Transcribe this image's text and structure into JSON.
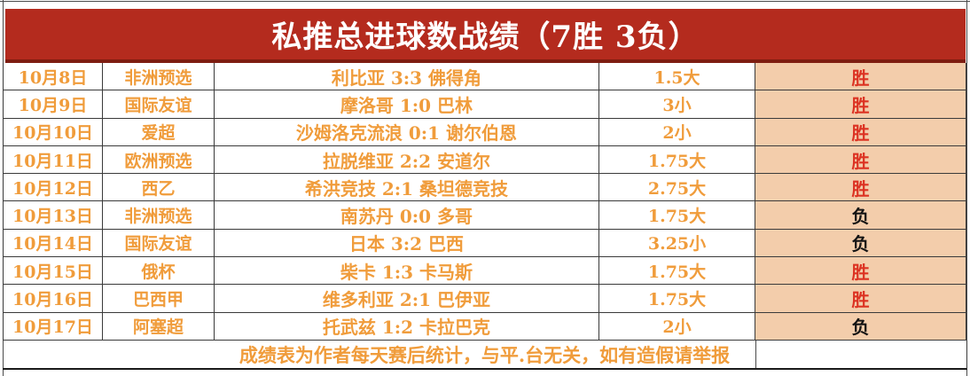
{
  "title": "私推总进球数战绩（7胜 3负）",
  "colors": {
    "title_bg": "#B42B1E",
    "title_border_bottom": "#7E1D11",
    "accent_orange": "#F09C3B",
    "result_cell_bg": "#F3CDAB",
    "win_text": "#DC3222",
    "loss_text": "#141414"
  },
  "table": {
    "rows": [
      {
        "date": "10月8日",
        "league": "非洲预选",
        "match": "利比亚 3:3 佛得角",
        "line": "1.5大",
        "result": "胜"
      },
      {
        "date": "10月9日",
        "league": "国际友谊",
        "match": "摩洛哥 1:0 巴林",
        "line": "3小",
        "result": "胜"
      },
      {
        "date": "10月10日",
        "league": "爱超",
        "match": "沙姆洛克流浪 0:1 谢尔伯恩",
        "line": "2小",
        "result": "胜"
      },
      {
        "date": "10月11日",
        "league": "欧洲预选",
        "match": "拉脱维亚 2:2 安道尔",
        "line": "1.75大",
        "result": "胜"
      },
      {
        "date": "10月12日",
        "league": "西乙",
        "match": "希洪竞技 2:1 桑坦德竞技",
        "line": "2.75大",
        "result": "胜"
      },
      {
        "date": "10月13日",
        "league": "非洲预选",
        "match": "南苏丹 0:0 多哥",
        "line": "1.75大",
        "result": "负"
      },
      {
        "date": "10月14日",
        "league": "国际友谊",
        "match": "日本 3:2 巴西",
        "line": "3.25小",
        "result": "负"
      },
      {
        "date": "10月15日",
        "league": "俄杯",
        "match": "柴卡 1:3 卡马斯",
        "line": "1.75大",
        "result": "胜"
      },
      {
        "date": "10月16日",
        "league": "巴西甲",
        "match": "维多利亚 2:1 巴伊亚",
        "line": "1.75大",
        "result": "胜"
      },
      {
        "date": "10月17日",
        "league": "阿塞超",
        "match": "托武兹 1:2 卡拉巴克",
        "line": "2小",
        "result": "负"
      }
    ]
  },
  "footer": {
    "note": "成绩表为作者每天赛后统计，与平.台无关，如有造假请举报"
  }
}
